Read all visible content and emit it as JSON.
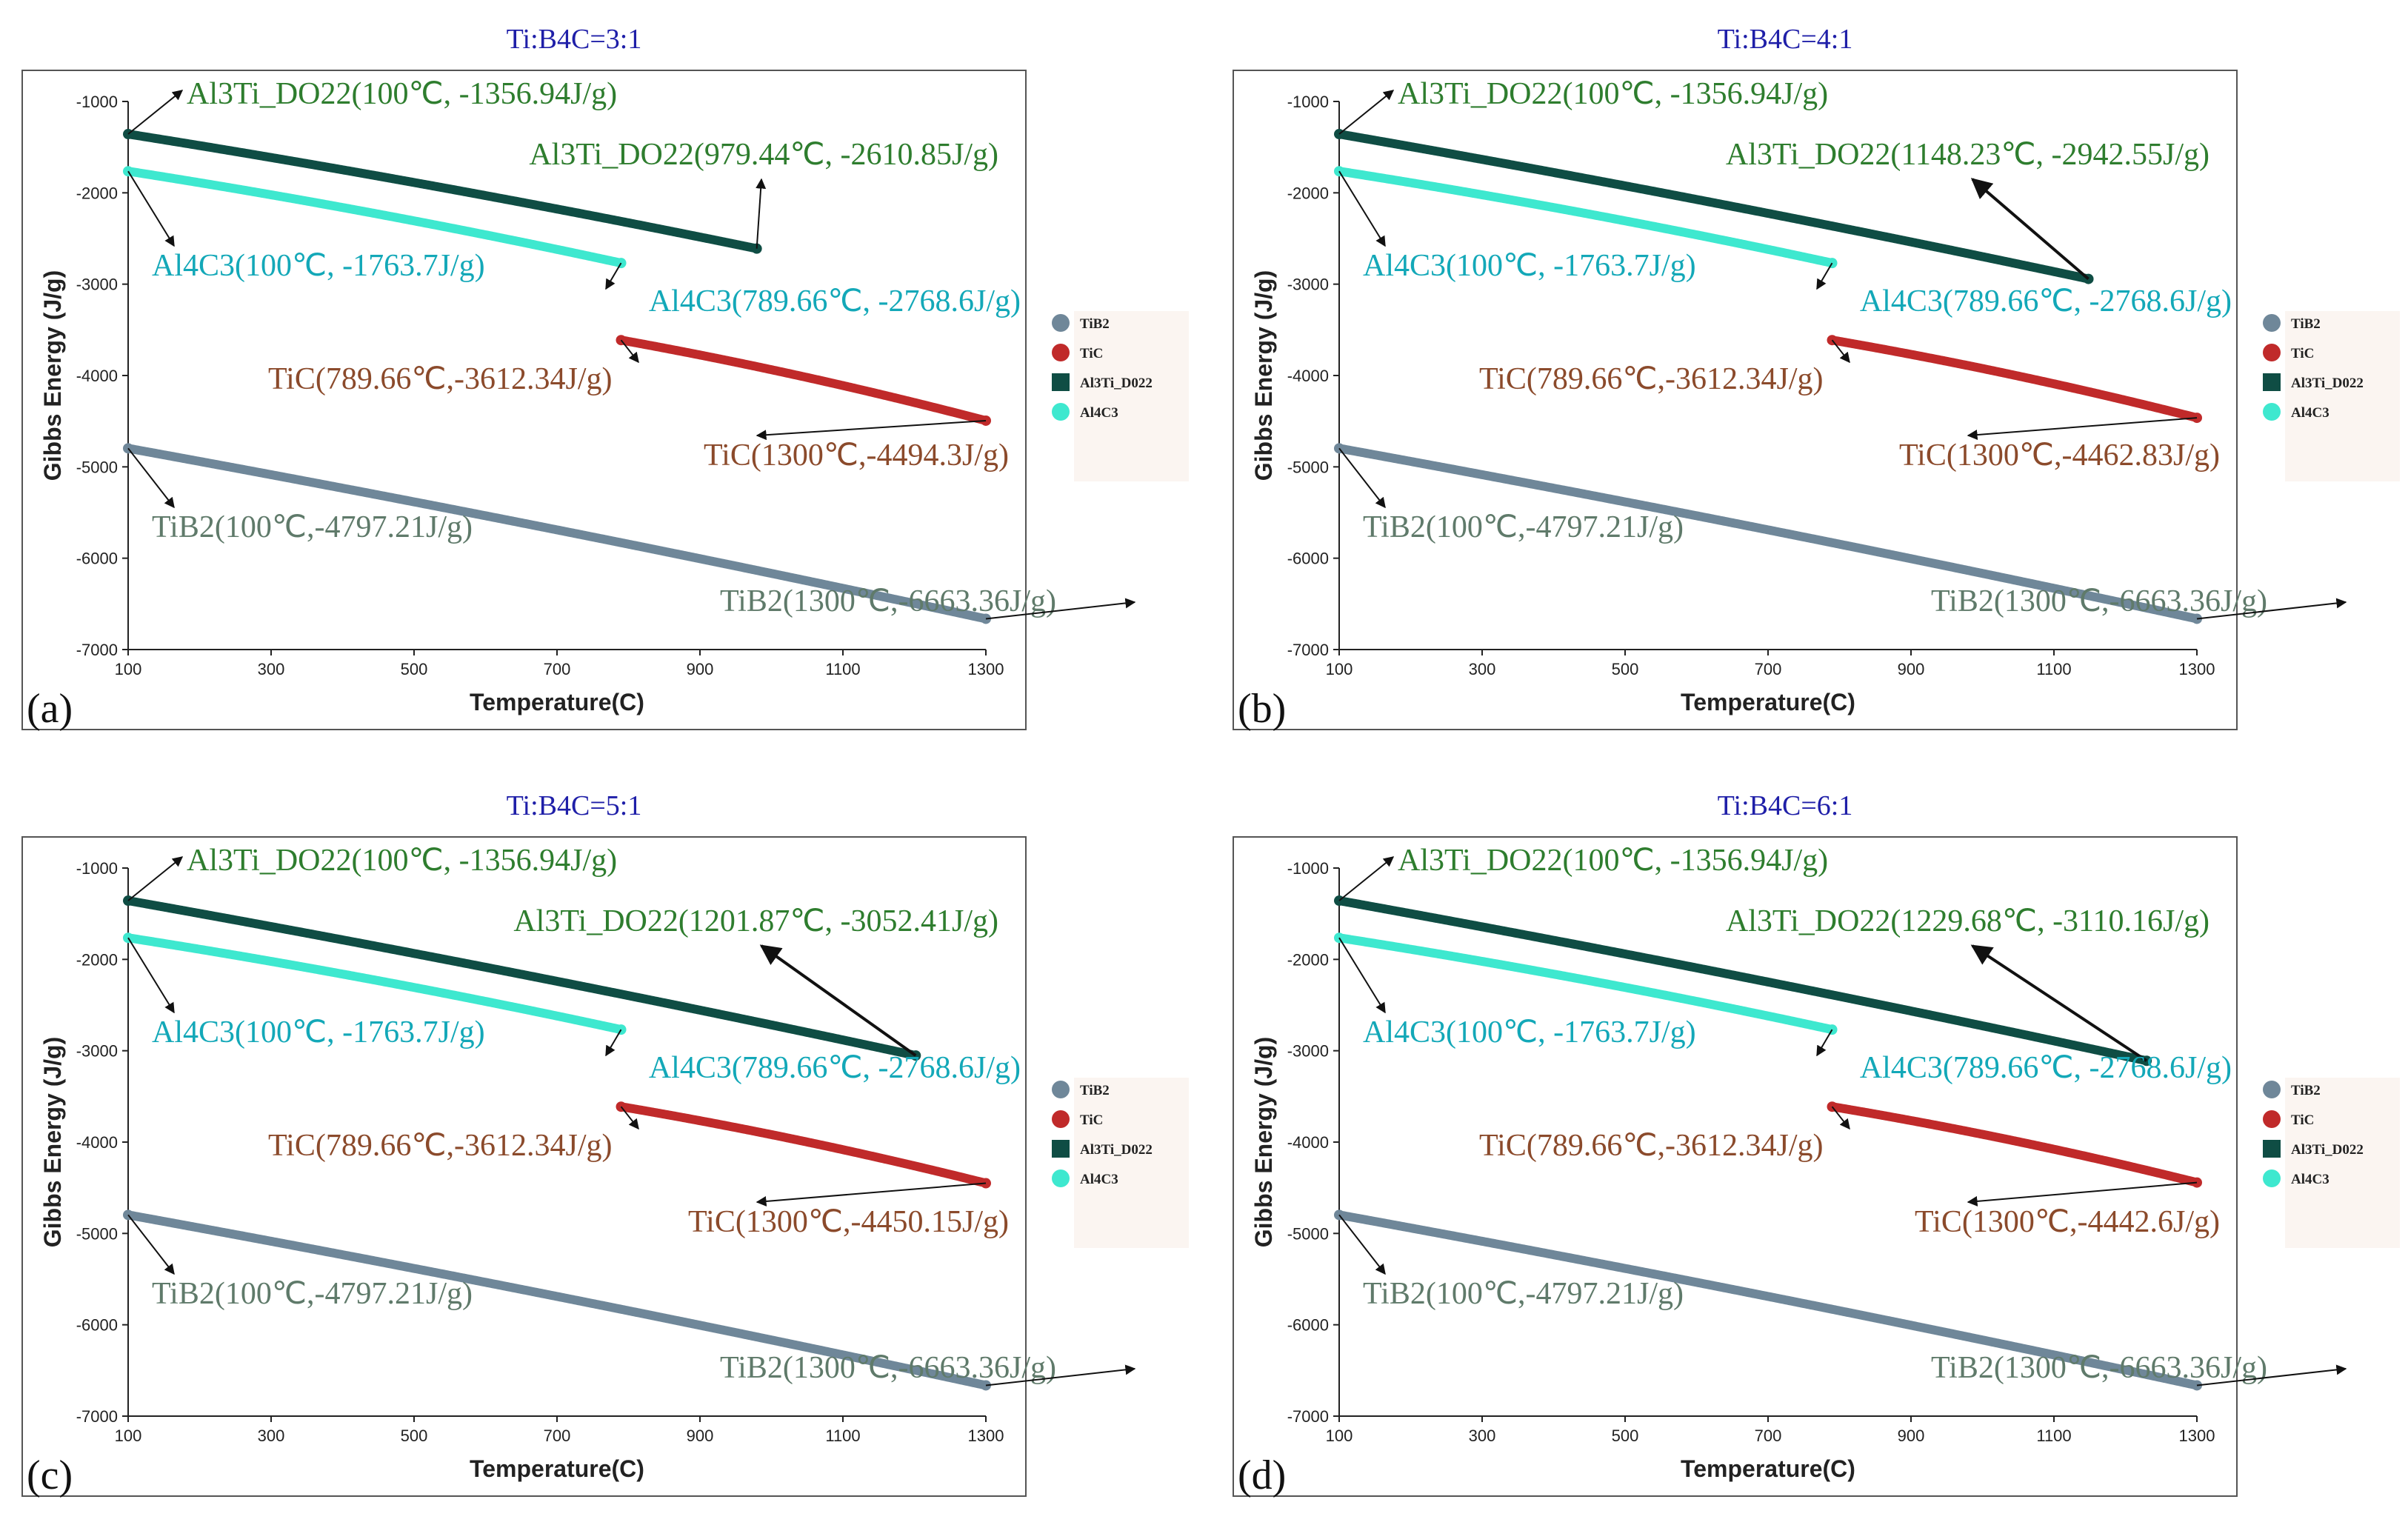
{
  "chart_data": [
    {
      "type": "line",
      "panel_label": "(a)",
      "title": "Ti:B4C=3:1",
      "xlabel": "Temperature(C)",
      "ylabel": "Gibbs Energy (J/g)",
      "xlim": [
        100,
        1300
      ],
      "ylim": [
        -7000,
        -1000
      ],
      "xticks": [
        "100",
        "300",
        "500",
        "700",
        "900",
        "1100",
        "1300"
      ],
      "yticks": [
        "-1000",
        "-2000",
        "-3000",
        "-4000",
        "-5000",
        "-6000",
        "-7000"
      ],
      "legend": [
        "TiB2",
        "TiC",
        "Al3Ti_D022",
        "Al4C3"
      ],
      "series": [
        {
          "name": "TiB2",
          "color": "#6f8799",
          "x": [
            100,
            1300
          ],
          "y": [
            -4797.21,
            -6663.36
          ]
        },
        {
          "name": "TiC",
          "color": "#c02a2a",
          "x": [
            789.66,
            1300
          ],
          "y": [
            -3612.34,
            -4494.3
          ]
        },
        {
          "name": "Al3Ti_D022",
          "color": "#0f4d44",
          "x": [
            100,
            979.44
          ],
          "y": [
            -1356.94,
            -2610.85
          ]
        },
        {
          "name": "Al4C3",
          "color": "#3ee8cf",
          "x": [
            100,
            789.66
          ],
          "y": [
            -1763.7,
            -2768.6
          ]
        }
      ],
      "annotations": [
        {
          "text": "Al3Ti_DO22(100℃, -1356.94J/g)",
          "color": "#2e7d2e"
        },
        {
          "text": "Al3Ti_DO22(979.44℃, -2610.85J/g)",
          "color": "#2e7d2e"
        },
        {
          "text": "Al4C3(100℃, -1763.7J/g)",
          "color": "#13a8b8"
        },
        {
          "text": "Al4C3(789.66℃, -2768.6J/g)",
          "color": "#13a8b8"
        },
        {
          "text": "TiC(789.66℃,-3612.34J/g)",
          "color": "#8b4a2b"
        },
        {
          "text": "TiC(1300℃,-4494.3J/g)",
          "color": "#8b4a2b"
        },
        {
          "text": "TiB2(100℃,-4797.21J/g)",
          "color": "#5f7a6a"
        },
        {
          "text": "TiB2(1300℃,-6663.36J/g)",
          "color": "#5f7a6a"
        }
      ]
    },
    {
      "type": "line",
      "panel_label": "(b)",
      "title": "Ti:B4C=4:1",
      "xlabel": "Temperature(C)",
      "ylabel": "Gibbs Energy (J/g)",
      "xlim": [
        100,
        1300
      ],
      "ylim": [
        -7000,
        -1000
      ],
      "xticks": [
        "100",
        "300",
        "500",
        "700",
        "900",
        "1100",
        "1300"
      ],
      "yticks": [
        "-1000",
        "-2000",
        "-3000",
        "-4000",
        "-5000",
        "-6000",
        "-7000"
      ],
      "legend": [
        "TiB2",
        "TiC",
        "Al3Ti_D022",
        "Al4C3"
      ],
      "series": [
        {
          "name": "TiB2",
          "color": "#6f8799",
          "x": [
            100,
            1300
          ],
          "y": [
            -4797.21,
            -6663.36
          ]
        },
        {
          "name": "TiC",
          "color": "#c02a2a",
          "x": [
            789.66,
            1300
          ],
          "y": [
            -3612.34,
            -4462.83
          ]
        },
        {
          "name": "Al3Ti_D022",
          "color": "#0f4d44",
          "x": [
            100,
            1148.23
          ],
          "y": [
            -1356.94,
            -2942.55
          ]
        },
        {
          "name": "Al4C3",
          "color": "#3ee8cf",
          "x": [
            100,
            789.66
          ],
          "y": [
            -1763.7,
            -2768.6
          ]
        }
      ],
      "annotations": [
        {
          "text": "Al3Ti_DO22(100℃, -1356.94J/g)",
          "color": "#2e7d2e"
        },
        {
          "text": "Al3Ti_DO22(1148.23℃, -2942.55J/g)",
          "color": "#2e7d2e"
        },
        {
          "text": "Al4C3(100℃, -1763.7J/g)",
          "color": "#13a8b8"
        },
        {
          "text": "Al4C3(789.66℃, -2768.6J/g)",
          "color": "#13a8b8"
        },
        {
          "text": "TiC(789.66℃,-3612.34J/g)",
          "color": "#8b4a2b"
        },
        {
          "text": "TiC(1300℃,-4462.83J/g)",
          "color": "#8b4a2b"
        },
        {
          "text": "TiB2(100℃,-4797.21J/g)",
          "color": "#5f7a6a"
        },
        {
          "text": "TiB2(1300℃,-6663.36J/g)",
          "color": "#5f7a6a"
        }
      ]
    },
    {
      "type": "line",
      "panel_label": "(c)",
      "title": "Ti:B4C=5:1",
      "xlabel": "Temperature(C)",
      "ylabel": "Gibbs Energy (J/g)",
      "xlim": [
        100,
        1300
      ],
      "ylim": [
        -7000,
        -1000
      ],
      "xticks": [
        "100",
        "300",
        "500",
        "700",
        "900",
        "1100",
        "1300"
      ],
      "yticks": [
        "-1000",
        "-2000",
        "-3000",
        "-4000",
        "-5000",
        "-6000",
        "-7000"
      ],
      "legend": [
        "TiB2",
        "TiC",
        "Al3Ti_D022",
        "Al4C3"
      ],
      "series": [
        {
          "name": "TiB2",
          "color": "#6f8799",
          "x": [
            100,
            1300
          ],
          "y": [
            -4797.21,
            -6663.36
          ]
        },
        {
          "name": "TiC",
          "color": "#c02a2a",
          "x": [
            789.66,
            1300
          ],
          "y": [
            -3612.34,
            -4450.15
          ]
        },
        {
          "name": "Al3Ti_D022",
          "color": "#0f4d44",
          "x": [
            100,
            1201.87
          ],
          "y": [
            -1356.94,
            -3052.41
          ]
        },
        {
          "name": "Al4C3",
          "color": "#3ee8cf",
          "x": [
            100,
            789.66
          ],
          "y": [
            -1763.7,
            -2768.6
          ]
        }
      ],
      "annotations": [
        {
          "text": "Al3Ti_DO22(100℃, -1356.94J/g)",
          "color": "#2e7d2e"
        },
        {
          "text": "Al3Ti_DO22(1201.87℃, -3052.41J/g)",
          "color": "#2e7d2e"
        },
        {
          "text": "Al4C3(100℃, -1763.7J/g)",
          "color": "#13a8b8"
        },
        {
          "text": "Al4C3(789.66℃, -2768.6J/g)",
          "color": "#13a8b8"
        },
        {
          "text": "TiC(789.66℃,-3612.34J/g)",
          "color": "#8b4a2b"
        },
        {
          "text": "TiC(1300℃,-4450.15J/g)",
          "color": "#8b4a2b"
        },
        {
          "text": "TiB2(100℃,-4797.21J/g)",
          "color": "#5f7a6a"
        },
        {
          "text": "TiB2(1300℃,-6663.36J/g)",
          "color": "#5f7a6a"
        }
      ]
    },
    {
      "type": "line",
      "panel_label": "(d)",
      "title": "Ti:B4C=6:1",
      "xlabel": "Temperature(C)",
      "ylabel": "Gibbs Energy (J/g)",
      "xlim": [
        100,
        1300
      ],
      "ylim": [
        -7000,
        -1000
      ],
      "xticks": [
        "100",
        "300",
        "500",
        "700",
        "900",
        "1100",
        "1300"
      ],
      "yticks": [
        "-1000",
        "-2000",
        "-3000",
        "-4000",
        "-5000",
        "-6000",
        "-7000"
      ],
      "legend": [
        "TiB2",
        "TiC",
        "Al3Ti_D022",
        "Al4C3"
      ],
      "series": [
        {
          "name": "TiB2",
          "color": "#6f8799",
          "x": [
            100,
            1300
          ],
          "y": [
            -4797.21,
            -6663.36
          ]
        },
        {
          "name": "TiC",
          "color": "#c02a2a",
          "x": [
            789.66,
            1300
          ],
          "y": [
            -3612.34,
            -4442.6
          ]
        },
        {
          "name": "Al3Ti_D022",
          "color": "#0f4d44",
          "x": [
            100,
            1229.68
          ],
          "y": [
            -1356.94,
            -3110.16
          ]
        },
        {
          "name": "Al4C3",
          "color": "#3ee8cf",
          "x": [
            100,
            789.66
          ],
          "y": [
            -1763.7,
            -2768.6
          ]
        }
      ],
      "annotations": [
        {
          "text": "Al3Ti_DO22(100℃, -1356.94J/g)",
          "color": "#2e7d2e"
        },
        {
          "text": "Al3Ti_DO22(1229.68℃, -3110.16J/g)",
          "color": "#2e7d2e"
        },
        {
          "text": "Al4C3(100℃, -1763.7J/g)",
          "color": "#13a8b8"
        },
        {
          "text": "Al4C3(789.66℃, -2768.6J/g)",
          "color": "#13a8b8"
        },
        {
          "text": "TiC(789.66℃,-3612.34J/g)",
          "color": "#8b4a2b"
        },
        {
          "text": "TiC(1300℃,-4442.6J/g)",
          "color": "#8b4a2b"
        },
        {
          "text": "TiB2(100℃,-4797.21J/g)",
          "color": "#5f7a6a"
        },
        {
          "text": "TiB2(1300℃,-6663.36J/g)",
          "color": "#5f7a6a"
        }
      ]
    }
  ]
}
